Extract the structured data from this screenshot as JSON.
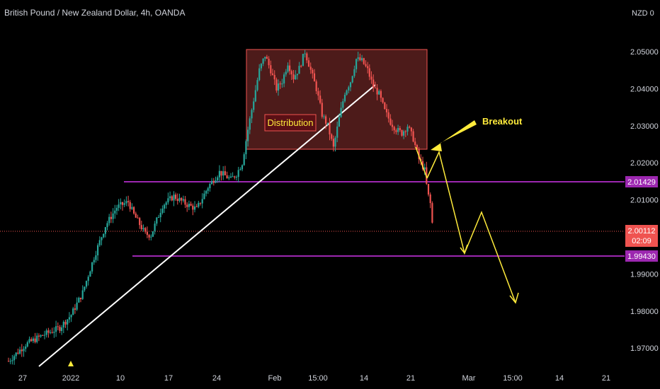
{
  "header": {
    "title": "British Pound / New Zealand Dollar, 4h, OANDA"
  },
  "price_axis": {
    "currency_label": "NZD"
  },
  "chart_data": {
    "type": "candlestick",
    "title": "British Pound / New Zealand Dollar, 4h, OANDA",
    "symbol": "GBPNZD",
    "interval": "4h",
    "source": "OANDA",
    "y_ticks": [
      "2.05000",
      "2.04000",
      "2.03000",
      "2.02000",
      "2.01000",
      "1.99000",
      "1.98000",
      "1.97000"
    ],
    "x_ticks": [
      "27",
      "2022",
      "10",
      "17",
      "24",
      "Feb",
      "15:00",
      "14",
      "21",
      "Mar",
      "15:00",
      "14",
      "21"
    ],
    "ylim": [
      1.9625,
      2.0525
    ],
    "price_path": [
      [
        0,
        1.9665
      ],
      [
        3,
        1.971
      ],
      [
        6,
        1.9735
      ],
      [
        9,
        1.9755
      ],
      [
        11,
        1.979
      ],
      [
        13,
        1.985
      ],
      [
        15,
        1.9945
      ],
      [
        17,
        2.003
      ],
      [
        19,
        2.008
      ],
      [
        21,
        2.0095
      ],
      [
        22,
        2.006
      ],
      [
        24,
        2.0008
      ],
      [
        25,
        2.0005
      ],
      [
        27,
        2.0085
      ],
      [
        29,
        2.011
      ],
      [
        31,
        2.009
      ],
      [
        33,
        2.0075
      ],
      [
        35,
        2.0135
      ],
      [
        37,
        2.0175
      ],
      [
        39,
        2.0155
      ],
      [
        40,
        2.017
      ],
      [
        41,
        2.02
      ],
      [
        42,
        2.029
      ],
      [
        43,
        2.037
      ],
      [
        44,
        2.045
      ],
      [
        45,
        2.049
      ],
      [
        46,
        2.045
      ],
      [
        47,
        2.04
      ],
      [
        48,
        2.042
      ],
      [
        49,
        2.047
      ],
      [
        50,
        2.043
      ],
      [
        51,
        2.0455
      ],
      [
        52,
        2.05
      ],
      [
        53,
        2.045
      ],
      [
        54,
        2.04
      ],
      [
        55,
        2.033
      ],
      [
        56,
        2.03
      ],
      [
        57,
        2.024
      ],
      [
        58,
        2.032
      ],
      [
        59,
        2.039
      ],
      [
        60,
        2.042
      ],
      [
        61,
        2.048
      ],
      [
        62,
        2.0475
      ],
      [
        63,
        2.045
      ],
      [
        64,
        2.0405
      ],
      [
        65,
        2.0385
      ],
      [
        66,
        2.034
      ],
      [
        67,
        2.031
      ],
      [
        68,
        2.029
      ],
      [
        69,
        2.028
      ],
      [
        70,
        2.03
      ],
      [
        71,
        2.0265
      ],
      [
        72,
        2.021
      ],
      [
        73,
        2.018
      ],
      [
        73.5,
        2.012
      ],
      [
        74,
        2.009
      ],
      [
        74.5,
        2.0011
      ]
    ],
    "current_price": {
      "value": "2.00112",
      "countdown": "02:09"
    },
    "levels": [
      {
        "price": 2.01429,
        "label": "2.01429",
        "color": "#9c27b0"
      },
      {
        "price": 1.9943,
        "label": "1.99430",
        "color": "#9c27b0"
      }
    ],
    "distribution_zone": {
      "label": "Distribution",
      "top": 2.05,
      "bottom": 2.023,
      "color": "#ef5350"
    },
    "trendline": {
      "color": "#ffffff"
    },
    "breakout_label": "Breakout",
    "projection_path": [
      [
        2.0205,
        2.017
      ],
      [
        2.017,
        1.9943
      ],
      [
        1.9943,
        2.0055
      ],
      [
        2.0055,
        1.9805
      ]
    ],
    "colors": {
      "up": "#26a69a",
      "down": "#ef5350",
      "annotation": "#ffeb3b",
      "level": "#9c27b0"
    }
  }
}
